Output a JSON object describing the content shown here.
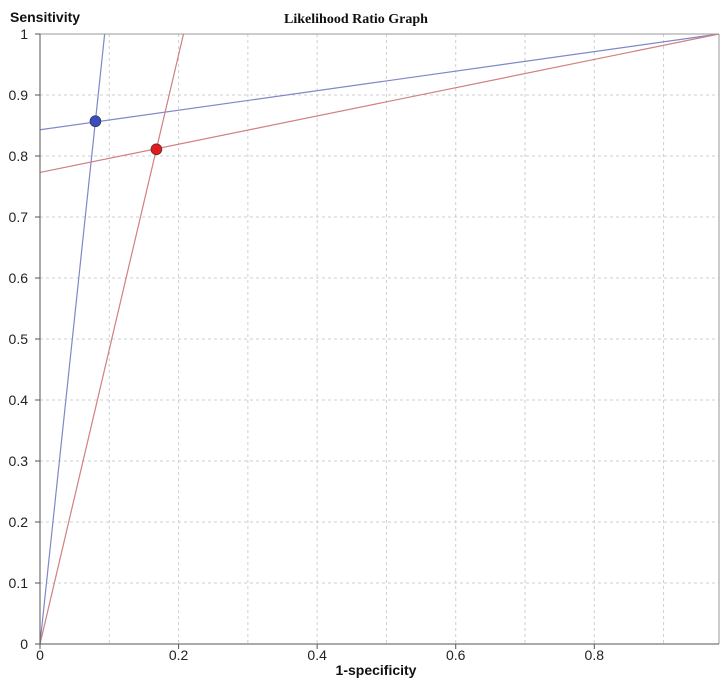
{
  "chart_data": {
    "type": "scatter",
    "title": "Likelihood Ratio Graph",
    "xlabel": "1-specificity",
    "ylabel": "Sensitivity",
    "xlim": [
      0,
      0.98
    ],
    "ylim": [
      0,
      1
    ],
    "x_ticks": [
      "0",
      "0.2",
      "0.4",
      "0.6",
      "0.8"
    ],
    "y_ticks": [
      "0",
      "0.1",
      "0.2",
      "0.3",
      "0.4",
      "0.5",
      "0.6",
      "0.7",
      "0.8",
      "0.9",
      "1"
    ],
    "grid": true,
    "points": [
      {
        "x": 0.08,
        "y": 0.857,
        "color": "#3b4cc0"
      },
      {
        "x": 0.168,
        "y": 0.811,
        "color": "#e31a1c"
      }
    ],
    "lines": [
      {
        "from": [
          0,
          0
        ],
        "to": [
          0.0933,
          1
        ],
        "color": "#7f88c8"
      },
      {
        "from": [
          0,
          0.843
        ],
        "to": [
          0.98,
          1
        ],
        "color": "#7f88c8"
      },
      {
        "from": [
          0,
          0
        ],
        "to": [
          0.2071,
          1
        ],
        "color": "#d08080"
      },
      {
        "from": [
          0,
          0.773
        ],
        "to": [
          0.98,
          1
        ],
        "color": "#d08080"
      }
    ]
  }
}
